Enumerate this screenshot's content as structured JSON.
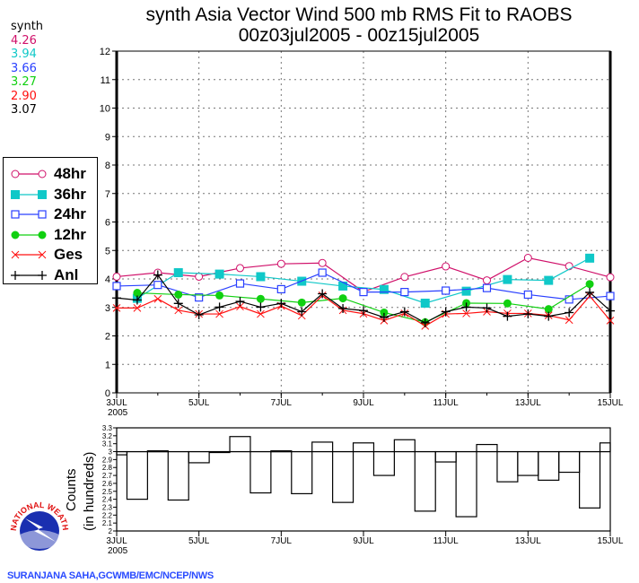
{
  "title": "synth Asia Vector Wind 500 mb RMS Fit to RAOBS",
  "subtitle": "00z03jul2005 - 00z15jul2005",
  "stats_panel": {
    "header": "synth",
    "values": [
      {
        "text": "4.26",
        "color": "#d0106a"
      },
      {
        "text": "3.94",
        "color": "#10c8c8"
      },
      {
        "text": "3.66",
        "color": "#2a40ff"
      },
      {
        "text": "3.27",
        "color": "#10d010"
      },
      {
        "text": "2.90",
        "color": "#ff1010"
      },
      {
        "text": "3.07",
        "color": "#000000"
      }
    ]
  },
  "credit": "SURANJANA SAHA,GCWMB/EMC/NCEP/NWS",
  "logo_text": "NATIONAL WEATHER SERVICE",
  "chart_data": [
    {
      "type": "line",
      "title": "synth Asia Vector Wind 500 mb RMS Fit to RAOBS",
      "subtitle": "00z03jul2005 - 00z15jul2005",
      "x_interval_hours": 12,
      "x_start": "00z03jul2005",
      "x_end": "00z15jul2005",
      "x_ticks": [
        "3JUL",
        "5JUL",
        "7JUL",
        "9JUL",
        "11JUL",
        "13JUL",
        "15JUL"
      ],
      "x_tick_year": "2005",
      "ylim": [
        0,
        12
      ],
      "y_ticks": [
        "0",
        "1",
        "2",
        "3",
        "4",
        "5",
        "6",
        "7",
        "8",
        "9",
        "10",
        "11",
        "12"
      ],
      "grid": true,
      "legend_placement": "left",
      "series": [
        {
          "name": "48hr",
          "color": "#d0106a",
          "marker": "open-circle",
          "start_index": 0,
          "step": 2,
          "values": [
            4.08,
            4.22,
            4.08,
            4.38,
            4.53,
            4.56,
            3.55,
            4.07,
            4.44,
            3.95,
            4.74,
            4.45,
            4.06
          ]
        },
        {
          "name": "36hr",
          "color": "#10c8c8",
          "marker": "filled-square",
          "start_index": 1,
          "step": 2,
          "values": [
            3.32,
            4.22,
            4.17,
            4.08,
            3.92,
            3.75,
            3.63,
            3.15,
            3.57,
            3.98,
            3.95,
            4.73
          ]
        },
        {
          "name": "24hr",
          "color": "#2a40ff",
          "marker": "open-square",
          "start_index": 0,
          "step": 2,
          "values": [
            3.75,
            3.79,
            3.35,
            3.84,
            3.64,
            4.22,
            3.54,
            3.54,
            3.59,
            3.68,
            3.45,
            3.28,
            3.4
          ]
        },
        {
          "name": "12hr",
          "color": "#10d010",
          "marker": "filled-circle",
          "start_index": 1,
          "step": 2,
          "values": [
            3.51,
            3.45,
            3.42,
            3.3,
            3.17,
            3.32,
            2.82,
            2.48,
            3.15,
            3.14,
            2.94,
            3.82
          ]
        },
        {
          "name": "Ges",
          "color": "#ff1010",
          "marker": "x",
          "start_index": 0,
          "step": 1,
          "values": [
            2.98,
            2.98,
            3.3,
            2.9,
            2.77,
            2.77,
            3.03,
            2.77,
            3.05,
            2.71,
            3.42,
            2.9,
            2.78,
            2.54,
            2.79,
            2.35,
            2.77,
            2.79,
            2.85,
            2.79,
            2.79,
            2.72,
            2.56,
            3.4,
            2.54
          ]
        },
        {
          "name": "Anl",
          "color": "#000000",
          "marker": "plus",
          "start_index": 0,
          "step": 1,
          "values": [
            3.33,
            3.26,
            4.14,
            3.14,
            2.74,
            3.01,
            3.21,
            3.01,
            3.14,
            2.85,
            3.48,
            2.96,
            2.89,
            2.65,
            2.85,
            2.46,
            2.85,
            3.01,
            2.98,
            2.69,
            2.77,
            2.69,
            2.82,
            3.53,
            2.88
          ]
        }
      ]
    },
    {
      "type": "bar",
      "style": "step",
      "ylabel": "Counts",
      "ylabel2": "(in hundreds)",
      "ylim": [
        2,
        3.3
      ],
      "y_ticks": [
        "2",
        "2.1",
        "2.2",
        "2.3",
        "2.4",
        "2.5",
        "2.6",
        "2.7",
        "2.8",
        "2.9",
        "3",
        "3.1",
        "3.2",
        "3.3"
      ],
      "reference_line": 3.0,
      "x_ticks": [
        "3JUL",
        "5JUL",
        "7JUL",
        "9JUL",
        "11JUL",
        "13JUL",
        "15JUL"
      ],
      "x_tick_year": "2005",
      "x_interval_hours": 12,
      "values": [
        2.96,
        2.4,
        3.01,
        2.39,
        2.86,
        2.99,
        3.19,
        2.48,
        3.01,
        2.47,
        3.12,
        2.36,
        3.11,
        2.7,
        3.15,
        2.25,
        2.87,
        2.18,
        3.09,
        2.62,
        2.7,
        2.64,
        2.74,
        2.29,
        3.11
      ]
    }
  ]
}
